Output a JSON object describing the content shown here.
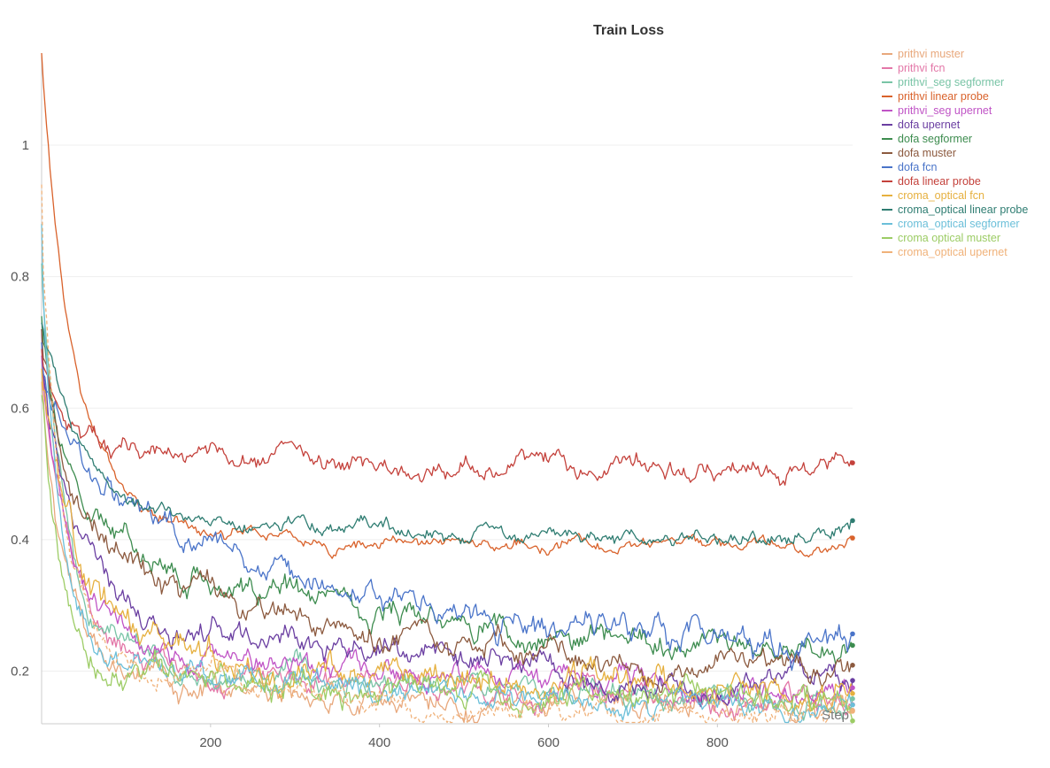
{
  "chart_data": {
    "type": "line",
    "title": "Train Loss",
    "xlabel": "Step",
    "ylabel": "",
    "xlim": [
      0,
      960
    ],
    "ylim": [
      0.12,
      1.14
    ],
    "x_ticks": [
      200,
      400,
      600,
      800
    ],
    "y_ticks": [
      0.2,
      0.4,
      0.6,
      0.8,
      1
    ],
    "grid": true,
    "legend_position": "right",
    "series": [
      {
        "name": "prithvi muster",
        "color": "#e8a87c",
        "dashed": false,
        "start": 0.64,
        "fast": 0.42,
        "slow": 0.08,
        "k1": 25,
        "k2": 350,
        "final": 0.14,
        "noise": 0.009,
        "seed": 1
      },
      {
        "name": "prithvi fcn",
        "color": "#e377a8",
        "dashed": false,
        "start": 0.7,
        "fast": 0.42,
        "slow": 0.1,
        "k1": 30,
        "k2": 400,
        "final": 0.155,
        "noise": 0.009,
        "seed": 2
      },
      {
        "name": "prithvi_seg segformer",
        "color": "#79c4a6",
        "dashed": false,
        "start": 0.82,
        "fast": 0.55,
        "slow": 0.1,
        "k1": 28,
        "k2": 380,
        "final": 0.15,
        "noise": 0.009,
        "seed": 3
      },
      {
        "name": "prithvi linear probe",
        "color": "#d9622b",
        "dashed": false,
        "start": 1.14,
        "fast": 0.58,
        "slow": 0.16,
        "k1": 32,
        "k2": 110,
        "final": 0.39,
        "noise": 0.005,
        "seed": 4
      },
      {
        "name": "prithvi_seg upernet",
        "color": "#c054c6",
        "dashed": false,
        "start": 0.68,
        "fast": 0.4,
        "slow": 0.1,
        "k1": 32,
        "k2": 420,
        "final": 0.17,
        "noise": 0.009,
        "seed": 5
      },
      {
        "name": "dofa upernet",
        "color": "#6a3ea1",
        "dashed": false,
        "start": 0.72,
        "fast": 0.35,
        "slow": 0.16,
        "k1": 38,
        "k2": 420,
        "final": 0.175,
        "noise": 0.01,
        "seed": 6
      },
      {
        "name": "dofa segformer",
        "color": "#3d8c4f",
        "dashed": false,
        "start": 0.74,
        "fast": 0.28,
        "slow": 0.22,
        "k1": 35,
        "k2": 360,
        "final": 0.23,
        "noise": 0.01,
        "seed": 7
      },
      {
        "name": "dofa muster",
        "color": "#8c5a3f",
        "dashed": false,
        "start": 0.72,
        "fast": 0.3,
        "slow": 0.2,
        "k1": 38,
        "k2": 340,
        "final": 0.205,
        "noise": 0.01,
        "seed": 8
      },
      {
        "name": "dofa fcn",
        "color": "#4a74c9",
        "dashed": false,
        "start": 0.7,
        "fast": 0.18,
        "slow": 0.28,
        "k1": 45,
        "k2": 320,
        "final": 0.24,
        "noise": 0.011,
        "seed": 9
      },
      {
        "name": "dofa linear probe",
        "color": "#c4413b",
        "dashed": false,
        "start": 0.69,
        "fast": 0.14,
        "slow": 0.02,
        "k1": 30,
        "k2": 200,
        "final": 0.515,
        "noise": 0.008,
        "seed": 10
      },
      {
        "name": "croma_optical fcn",
        "color": "#e6b03f",
        "dashed": false,
        "start": 0.66,
        "fast": 0.38,
        "slow": 0.12,
        "k1": 32,
        "k2": 350,
        "final": 0.165,
        "noise": 0.012,
        "seed": 11
      },
      {
        "name": "croma_optical linear probe",
        "color": "#2f7d72",
        "dashed": false,
        "start": 0.73,
        "fast": 0.24,
        "slow": 0.08,
        "k1": 40,
        "k2": 150,
        "final": 0.41,
        "noise": 0.006,
        "seed": 12
      },
      {
        "name": "croma_optical segformer",
        "color": "#6bbfd9",
        "dashed": false,
        "start": 0.88,
        "fast": 0.58,
        "slow": 0.1,
        "k1": 22,
        "k2": 320,
        "final": 0.145,
        "noise": 0.009,
        "seed": 13
      },
      {
        "name": "croma optical muster",
        "color": "#9ccc65",
        "dashed": false,
        "start": 0.62,
        "fast": 0.42,
        "slow": 0.08,
        "k1": 20,
        "k2": 320,
        "final": 0.15,
        "noise": 0.01,
        "seed": 14
      },
      {
        "name": "croma_optical upernet",
        "color": "#f0b27a",
        "dashed": true,
        "start": 0.94,
        "fast": 0.62,
        "slow": 0.12,
        "k1": 25,
        "k2": 380,
        "final": 0.13,
        "noise": 0.009,
        "seed": 15
      }
    ]
  }
}
